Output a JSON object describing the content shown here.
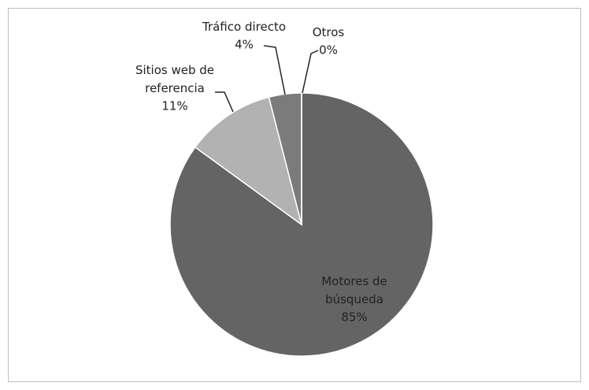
{
  "chart_data": {
    "type": "pie",
    "categories": [
      "Motores de búsqueda",
      "Sitios web de referencia",
      "Tráfico directo",
      "Otros"
    ],
    "values": [
      85,
      11,
      4,
      0
    ],
    "value_labels": [
      "85%",
      "11%",
      "4%",
      "0%"
    ],
    "colors": [
      "#646464",
      "#b2b2b2",
      "#7b7b7b",
      "#9a9a9a"
    ]
  }
}
